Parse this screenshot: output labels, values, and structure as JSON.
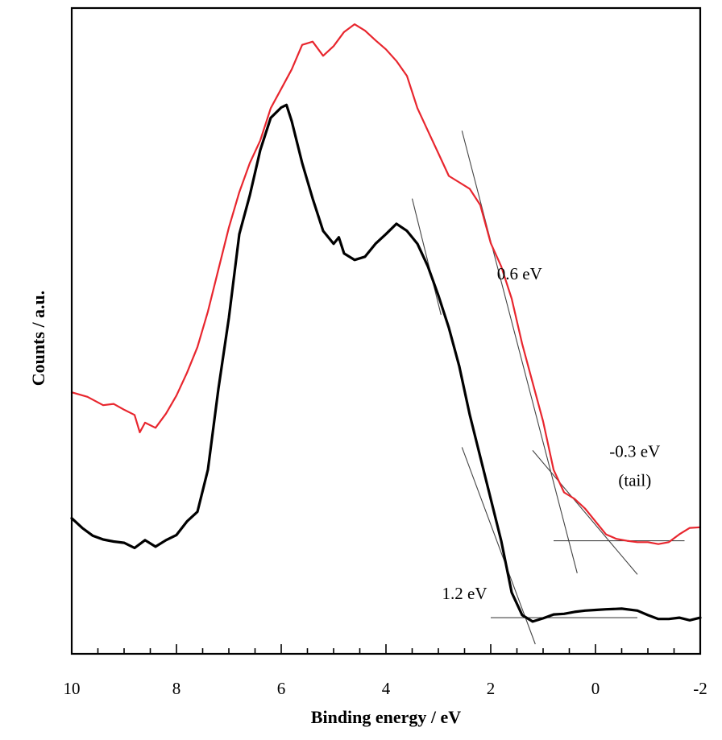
{
  "chart_data": {
    "type": "line",
    "xlabel": "Binding energy / eV",
    "ylabel": "Counts / a.u.",
    "xlim": [
      10,
      -2
    ],
    "x_reversed": true,
    "ylim": [
      0,
      100
    ],
    "y_ticks_labeled": false,
    "x_ticks": [
      "10",
      "8",
      "6",
      "4",
      "2",
      "0",
      "-2"
    ],
    "x_tick_values": [
      10,
      8,
      6,
      4,
      2,
      0,
      -2
    ],
    "grid": false,
    "legend": "none",
    "series": [
      {
        "color": "#e8262e",
        "points": [
          [
            10.0,
            40.5
          ],
          [
            9.7,
            39.8
          ],
          [
            9.4,
            38.5
          ],
          [
            9.2,
            38.7
          ],
          [
            9.0,
            37.8
          ],
          [
            8.8,
            37.0
          ],
          [
            8.7,
            34.3
          ],
          [
            8.6,
            35.8
          ],
          [
            8.4,
            35.0
          ],
          [
            8.2,
            37.2
          ],
          [
            8.0,
            40.0
          ],
          [
            7.8,
            43.5
          ],
          [
            7.6,
            47.5
          ],
          [
            7.4,
            53.0
          ],
          [
            7.2,
            59.5
          ],
          [
            7.0,
            66.0
          ],
          [
            6.8,
            71.5
          ],
          [
            6.6,
            76.0
          ],
          [
            6.4,
            79.5
          ],
          [
            6.2,
            84.5
          ],
          [
            6.0,
            87.5
          ],
          [
            5.8,
            90.5
          ],
          [
            5.6,
            94.3
          ],
          [
            5.4,
            94.8
          ],
          [
            5.2,
            92.6
          ],
          [
            5.0,
            94.1
          ],
          [
            4.8,
            96.3
          ],
          [
            4.6,
            97.5
          ],
          [
            4.4,
            96.5
          ],
          [
            4.2,
            95.0
          ],
          [
            4.0,
            93.6
          ],
          [
            3.8,
            91.8
          ],
          [
            3.6,
            89.5
          ],
          [
            3.4,
            84.5
          ],
          [
            3.2,
            81.0
          ],
          [
            3.0,
            77.5
          ],
          [
            2.8,
            74.0
          ],
          [
            2.6,
            73.0
          ],
          [
            2.4,
            72.0
          ],
          [
            2.2,
            69.5
          ],
          [
            2.0,
            63.6
          ],
          [
            1.8,
            60.0
          ],
          [
            1.6,
            55.0
          ],
          [
            1.4,
            48.0
          ],
          [
            1.2,
            42.0
          ],
          [
            1.0,
            36.0
          ],
          [
            0.8,
            28.5
          ],
          [
            0.6,
            25.0
          ],
          [
            0.4,
            24.0
          ],
          [
            0.2,
            22.5
          ],
          [
            0.0,
            20.5
          ],
          [
            -0.2,
            18.5
          ],
          [
            -0.4,
            17.8
          ],
          [
            -0.6,
            17.5
          ],
          [
            -0.8,
            17.3
          ],
          [
            -1.0,
            17.3
          ],
          [
            -1.2,
            17.0
          ],
          [
            -1.4,
            17.3
          ],
          [
            -1.6,
            18.5
          ],
          [
            -1.8,
            19.5
          ],
          [
            -2.0,
            19.6
          ]
        ]
      },
      {
        "color": "#000000",
        "points": [
          [
            10.0,
            21.0
          ],
          [
            9.8,
            19.5
          ],
          [
            9.6,
            18.3
          ],
          [
            9.4,
            17.7
          ],
          [
            9.2,
            17.4
          ],
          [
            9.0,
            17.2
          ],
          [
            8.8,
            16.4
          ],
          [
            8.6,
            17.6
          ],
          [
            8.4,
            16.6
          ],
          [
            8.2,
            17.6
          ],
          [
            8.0,
            18.4
          ],
          [
            7.8,
            20.5
          ],
          [
            7.6,
            22.0
          ],
          [
            7.4,
            28.5
          ],
          [
            7.2,
            41.0
          ],
          [
            7.0,
            52.0
          ],
          [
            6.8,
            65.0
          ],
          [
            6.6,
            71.0
          ],
          [
            6.4,
            78.0
          ],
          [
            6.2,
            83.0
          ],
          [
            6.0,
            84.6
          ],
          [
            5.9,
            85.0
          ],
          [
            5.8,
            82.5
          ],
          [
            5.6,
            76.0
          ],
          [
            5.4,
            70.5
          ],
          [
            5.2,
            65.5
          ],
          [
            5.0,
            63.5
          ],
          [
            4.9,
            64.5
          ],
          [
            4.8,
            62.0
          ],
          [
            4.6,
            61.0
          ],
          [
            4.4,
            61.5
          ],
          [
            4.2,
            63.5
          ],
          [
            4.0,
            65.0
          ],
          [
            3.8,
            66.6
          ],
          [
            3.6,
            65.5
          ],
          [
            3.4,
            63.5
          ],
          [
            3.2,
            60.0
          ],
          [
            3.0,
            55.5
          ],
          [
            2.8,
            50.5
          ],
          [
            2.6,
            44.5
          ],
          [
            2.4,
            37.0
          ],
          [
            2.2,
            30.5
          ],
          [
            2.0,
            24.0
          ],
          [
            1.8,
            17.5
          ],
          [
            1.6,
            9.5
          ],
          [
            1.4,
            6.0
          ],
          [
            1.2,
            5.0
          ],
          [
            1.0,
            5.5
          ],
          [
            0.8,
            6.1
          ],
          [
            0.6,
            6.2
          ],
          [
            0.4,
            6.5
          ],
          [
            0.2,
            6.7
          ],
          [
            0.0,
            6.8
          ],
          [
            -0.2,
            6.9
          ],
          [
            -0.5,
            7.0
          ],
          [
            -0.8,
            6.7
          ],
          [
            -1.0,
            6.0
          ],
          [
            -1.2,
            5.4
          ],
          [
            -1.4,
            5.4
          ],
          [
            -1.6,
            5.6
          ],
          [
            -1.8,
            5.2
          ],
          [
            -2.0,
            5.6
          ]
        ]
      }
    ],
    "guide_lines": [
      {
        "x": [
          2.55,
          0.35
        ],
        "y": [
          81.0,
          12.5
        ]
      },
      {
        "x": [
          3.5,
          2.95
        ],
        "y": [
          70.5,
          52.5
        ]
      },
      {
        "x": [
          1.2,
          -0.8
        ],
        "y": [
          31.5,
          12.3
        ]
      },
      {
        "x": [
          2.0,
          -0.8
        ],
        "y": [
          5.6,
          5.6
        ]
      },
      {
        "x": [
          0.8,
          -1.7
        ],
        "y": [
          17.5,
          17.5
        ]
      },
      {
        "x": [
          2.55,
          1.15
        ],
        "y": [
          32.0,
          1.5
        ]
      }
    ],
    "annotations": [
      {
        "text": "0.6 eV",
        "x": 1.45,
        "y": 58.0
      },
      {
        "text": "-0.3 eV",
        "x": -0.75,
        "y": 30.5
      },
      {
        "text": "(tail)",
        "x": -0.75,
        "y": 26.0
      },
      {
        "text": "1.2 eV",
        "x": 2.5,
        "y": 8.5
      }
    ]
  }
}
